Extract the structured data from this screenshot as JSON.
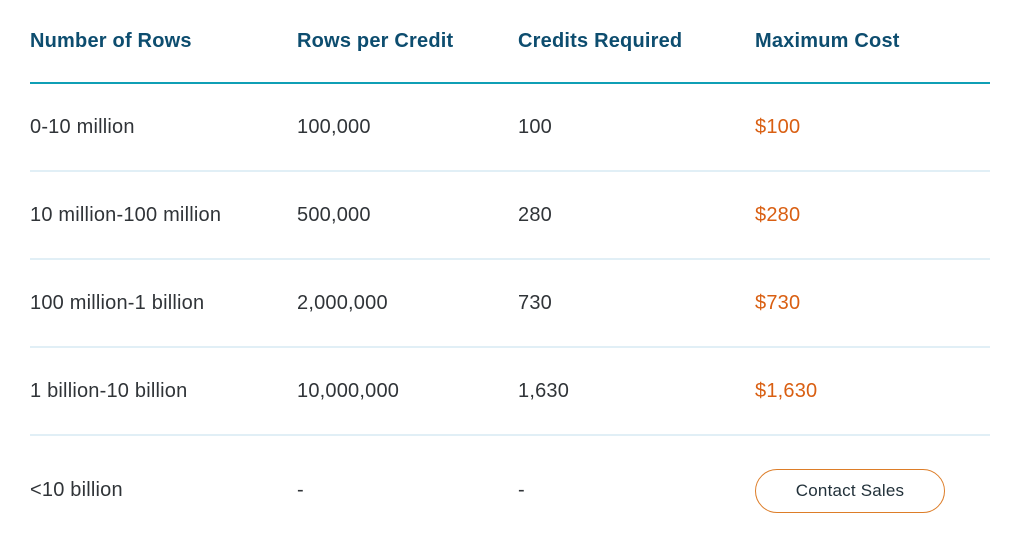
{
  "colors": {
    "background": "#ffffff",
    "header_text": "#0d4d6f",
    "header_rule": "#0f9fb5",
    "body_text": "#303438",
    "cost_text": "#d95f12",
    "button_border": "#dd7d28",
    "button_text": "#22313a",
    "row_divider": "#e1eff6"
  },
  "table": {
    "headers": {
      "number_of_rows": "Number of Rows",
      "rows_per_credit": "Rows per Credit",
      "credits_required": "Credits Required",
      "maximum_cost": "Maximum Cost"
    },
    "rows": [
      {
        "range": "0-10 million",
        "rows_per_credit": "100,000",
        "credits_required": "100",
        "maximum_cost": "$100"
      },
      {
        "range": "10 million-100 million",
        "rows_per_credit": "500,000",
        "credits_required": "280",
        "maximum_cost": "$280"
      },
      {
        "range": "100 million-1 billion",
        "rows_per_credit": "2,000,000",
        "credits_required": "730",
        "maximum_cost": "$730"
      },
      {
        "range": "1 billion-10 billion",
        "rows_per_credit": "10,000,000",
        "credits_required": "1,630",
        "maximum_cost": "$1,630"
      },
      {
        "range": "<10 billion",
        "rows_per_credit": "-",
        "credits_required": "-",
        "contact_button_label": "Contact Sales"
      }
    ]
  },
  "chart_data": {
    "type": "table",
    "title": "",
    "columns": [
      "Number of Rows",
      "Rows per Credit",
      "Credits Required",
      "Maximum Cost"
    ],
    "rows": [
      [
        "0-10 million",
        "100,000",
        "100",
        "$100"
      ],
      [
        "10 million-100 million",
        "500,000",
        "280",
        "$280"
      ],
      [
        "100 million-1 billion",
        "2,000,000",
        "730",
        "$730"
      ],
      [
        "1 billion-10 billion",
        "10,000,000",
        "1,630",
        "$1,630"
      ],
      [
        "<10 billion",
        "-",
        "-",
        "Contact Sales"
      ]
    ],
    "numeric_series": {
      "rows_per_credit": [
        100000,
        500000,
        2000000,
        10000000
      ],
      "credits_required": [
        100,
        280,
        730,
        1630
      ],
      "maximum_cost_usd": [
        100,
        280,
        730,
        1630
      ]
    }
  }
}
